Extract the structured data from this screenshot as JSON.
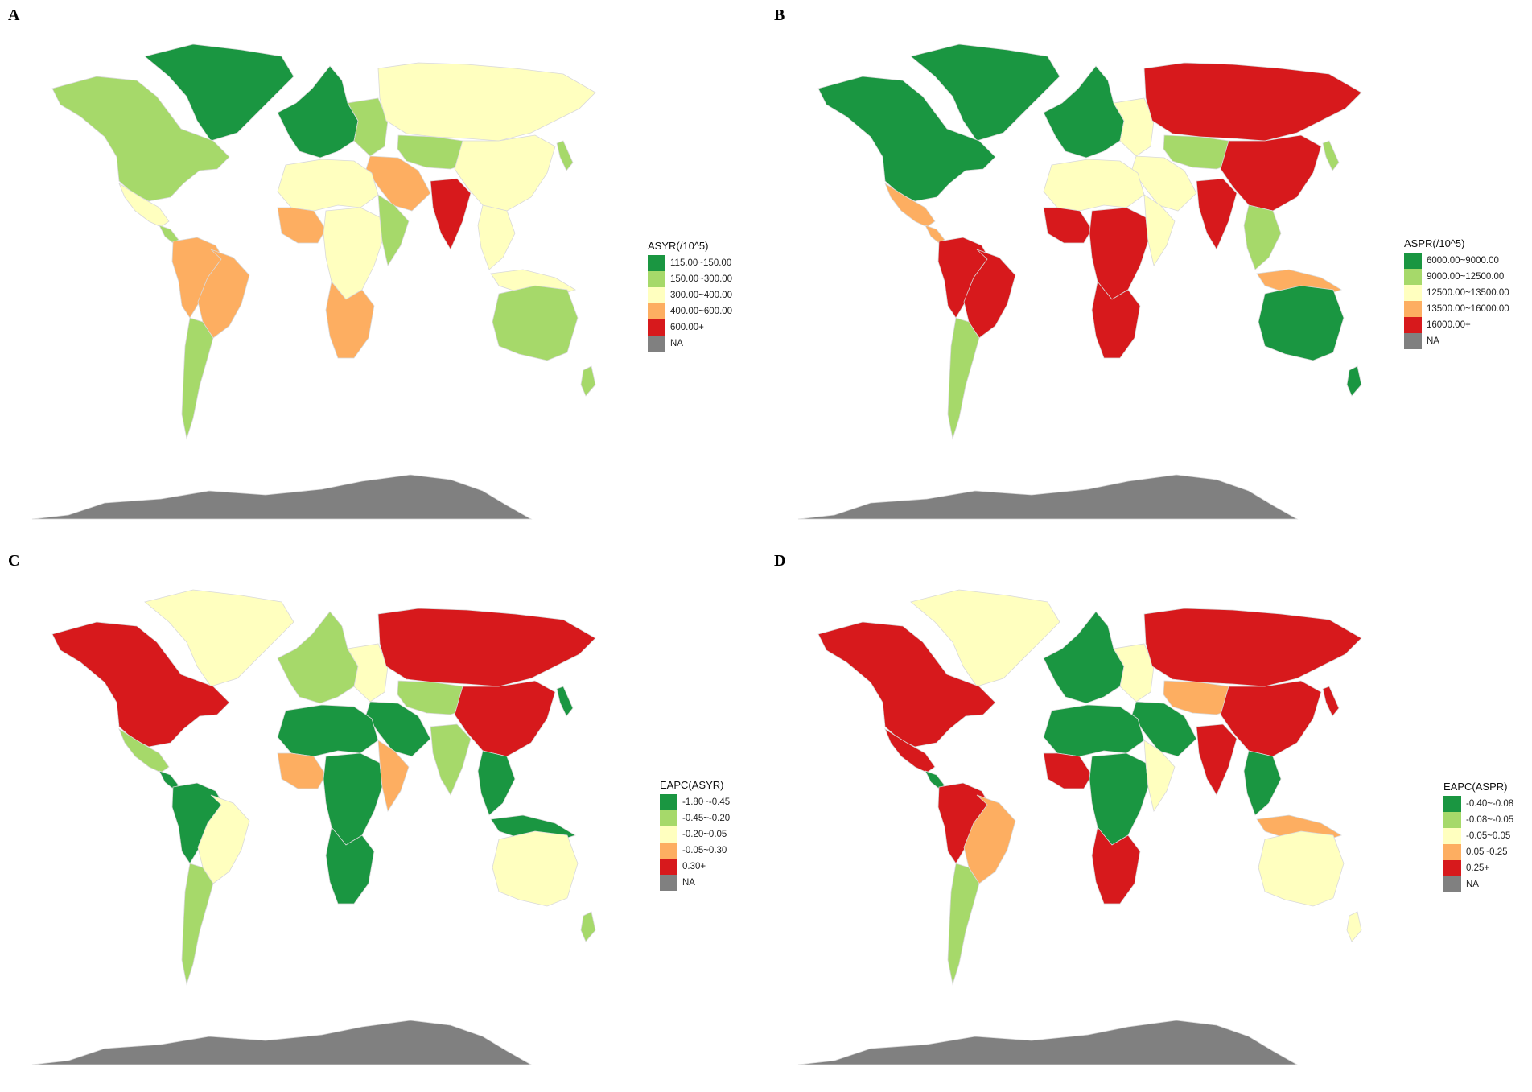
{
  "panels": [
    {
      "letter": "A",
      "legend": {
        "title": "ASYR(/10^5)",
        "items": [
          {
            "label": "115.00~150.00",
            "color": "#1a9641"
          },
          {
            "label": "150.00~300.00",
            "color": "#a6d96a"
          },
          {
            "label": "300.00~400.00",
            "color": "#ffffbf"
          },
          {
            "label": "400.00~600.00",
            "color": "#fdae61"
          },
          {
            "label": "600.00+",
            "color": "#d7191c"
          },
          {
            "label": "NA",
            "color": "#808080"
          }
        ]
      },
      "regions": {
        "na": 1,
        "mx": 2,
        "ca": 1,
        "sa_n": 3,
        "br": 3,
        "sa_s": 1,
        "gl": 0,
        "eu_w": 0,
        "eu_e": 1,
        "ru": 2,
        "ca_as": 1,
        "me": 3,
        "in": 4,
        "cn": 2,
        "sea": 2,
        "jp": 1,
        "af_n": 2,
        "af_w": 3,
        "af_c": 2,
        "af_e": 1,
        "af_s": 3,
        "au": 1,
        "nz": 1,
        "id": 2
      }
    },
    {
      "letter": "B",
      "legend": {
        "title": "ASPR(/10^5)",
        "items": [
          {
            "label": "6000.00~9000.00",
            "color": "#1a9641"
          },
          {
            "label": "9000.00~12500.00",
            "color": "#a6d96a"
          },
          {
            "label": "12500.00~13500.00",
            "color": "#ffffbf"
          },
          {
            "label": "13500.00~16000.00",
            "color": "#fdae61"
          },
          {
            "label": "16000.00+",
            "color": "#d7191c"
          },
          {
            "label": "NA",
            "color": "#808080"
          }
        ]
      },
      "regions": {
        "na": 0,
        "mx": 3,
        "ca": 3,
        "sa_n": 4,
        "br": 4,
        "sa_s": 1,
        "gl": 0,
        "eu_w": 0,
        "eu_e": 2,
        "ru": 4,
        "ca_as": 1,
        "me": 2,
        "in": 4,
        "cn": 4,
        "sea": 1,
        "jp": 1,
        "af_n": 2,
        "af_w": 4,
        "af_c": 4,
        "af_e": 2,
        "af_s": 4,
        "au": 0,
        "nz": 0,
        "id": 3
      }
    },
    {
      "letter": "C",
      "legend": {
        "title": "EAPC(ASYR)",
        "items": [
          {
            "label": "-1.80~-0.45",
            "color": "#1a9641"
          },
          {
            "label": "-0.45~-0.20",
            "color": "#a6d96a"
          },
          {
            "label": "-0.20~0.05",
            "color": "#ffffbf"
          },
          {
            "label": "-0.05~0.30",
            "color": "#fdae61"
          },
          {
            "label": "0.30+",
            "color": "#d7191c"
          },
          {
            "label": "NA",
            "color": "#808080"
          }
        ]
      },
      "regions": {
        "na": 4,
        "mx": 1,
        "ca": 0,
        "sa_n": 0,
        "br": 2,
        "sa_s": 1,
        "gl": 2,
        "eu_w": 1,
        "eu_e": 2,
        "ru": 4,
        "ca_as": 1,
        "me": 0,
        "in": 1,
        "cn": 4,
        "sea": 0,
        "jp": 0,
        "af_n": 0,
        "af_w": 3,
        "af_c": 0,
        "af_e": 3,
        "af_s": 0,
        "au": 2,
        "nz": 1,
        "id": 0
      }
    },
    {
      "letter": "D",
      "legend": {
        "title": "EAPC(ASPR)",
        "items": [
          {
            "label": "-0.40~-0.08",
            "color": "#1a9641"
          },
          {
            "label": "-0.08~-0.05",
            "color": "#a6d96a"
          },
          {
            "label": "-0.05~0.05",
            "color": "#ffffbf"
          },
          {
            "label": "0.05~0.25",
            "color": "#fdae61"
          },
          {
            "label": "0.25+",
            "color": "#d7191c"
          },
          {
            "label": "NA",
            "color": "#808080"
          }
        ]
      },
      "regions": {
        "na": 4,
        "mx": 4,
        "ca": 0,
        "sa_n": 4,
        "br": 3,
        "sa_s": 1,
        "gl": 2,
        "eu_w": 0,
        "eu_e": 2,
        "ru": 4,
        "ca_as": 3,
        "me": 0,
        "in": 4,
        "cn": 4,
        "sea": 0,
        "jp": 4,
        "af_n": 0,
        "af_w": 4,
        "af_c": 0,
        "af_e": 2,
        "af_s": 4,
        "au": 2,
        "nz": 2,
        "id": 3
      }
    }
  ]
}
